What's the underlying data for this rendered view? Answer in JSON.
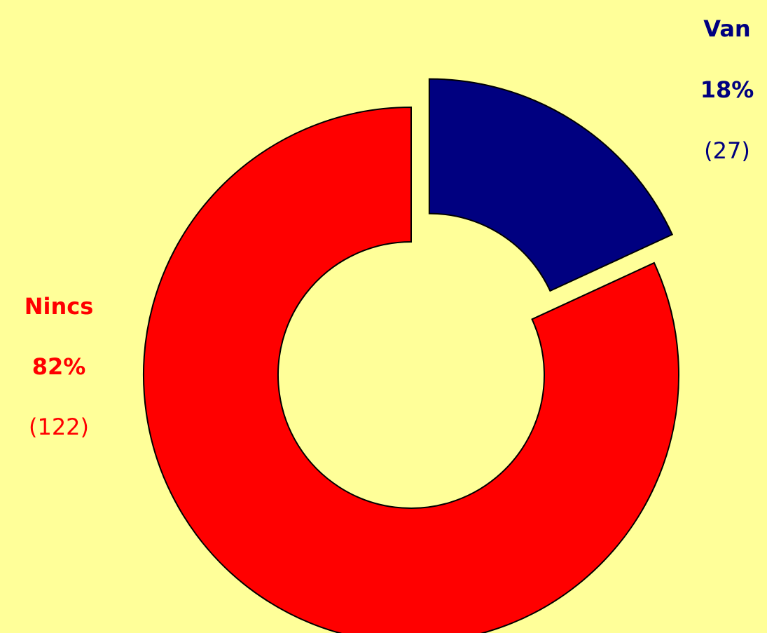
{
  "chart_data": {
    "type": "pie",
    "variant": "donut",
    "categories": [
      "Van",
      "Nincs"
    ],
    "values": [
      27,
      122
    ],
    "percent_labels": [
      "18%",
      "82%"
    ],
    "count_labels": [
      "(27)",
      "(122)"
    ],
    "colors": [
      "#000080",
      "#FF0000"
    ],
    "exploded": "Van",
    "legend": "none"
  }
}
